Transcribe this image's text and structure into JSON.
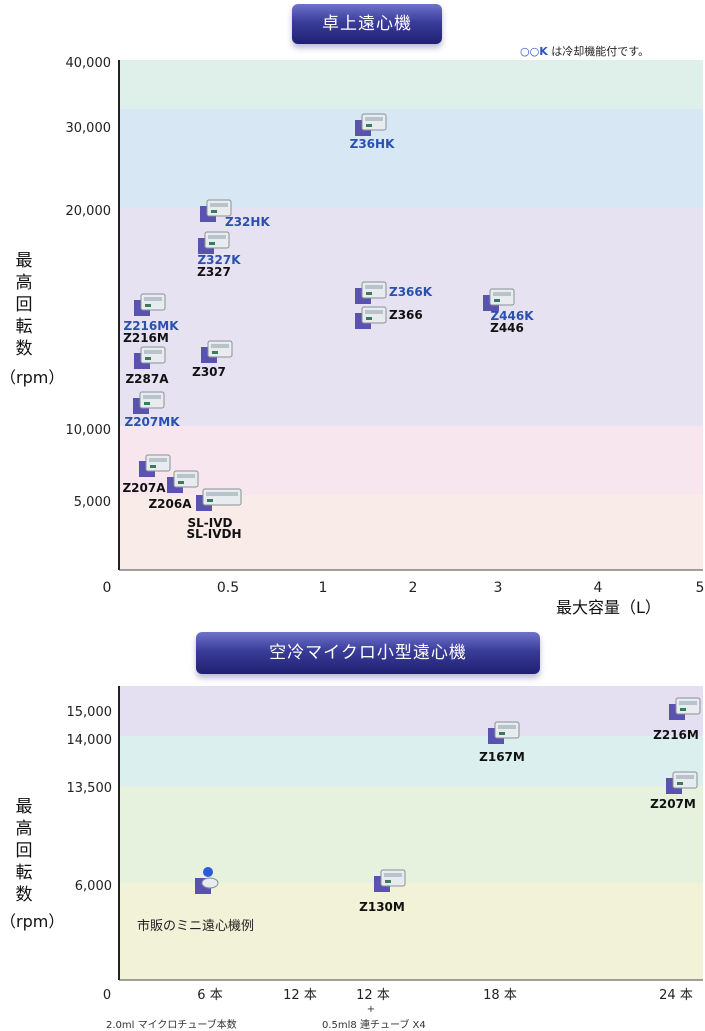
{
  "top": {
    "title": "卓上遠心機",
    "note_symbols": "○○K",
    "note_text": "は冷却機能付です。",
    "ylabel_chars": [
      "最",
      "高",
      "回",
      "転",
      "数"
    ],
    "ylabel_unit": "（rpm）",
    "xlabel": "最大容量（L）",
    "yticks": [
      "40,000",
      "30,000",
      "20,000",
      "10,000",
      "5,000"
    ],
    "xticks": [
      "0",
      "0.5",
      "1",
      "2",
      "3",
      "4",
      "5"
    ],
    "bands": [
      {
        "color": "#dff0ea"
      },
      {
        "color": "#d7e8f4"
      },
      {
        "color": "#e6e2f2"
      },
      {
        "color": "#f7e6ee"
      },
      {
        "color": "#f9ece8"
      }
    ],
    "products": [
      {
        "label": "Z36HK",
        "color": "#2a4fae"
      },
      {
        "label": "Z32HK",
        "color": "#2a4fae"
      },
      {
        "label": "Z327K",
        "color": "#2a4fae"
      },
      {
        "label": "Z327",
        "color": "#111111"
      },
      {
        "label": "Z366K",
        "color": "#2a4fae"
      },
      {
        "label": "Z366",
        "color": "#111111"
      },
      {
        "label": "Z446K",
        "color": "#2a4fae"
      },
      {
        "label": "Z446",
        "color": "#111111"
      },
      {
        "label": "Z216MK",
        "color": "#2a4fae"
      },
      {
        "label": "Z216M",
        "color": "#111111"
      },
      {
        "label": "Z287A",
        "color": "#111111"
      },
      {
        "label": "Z307",
        "color": "#111111"
      },
      {
        "label": "Z207MK",
        "color": "#2a4fae"
      },
      {
        "label": "Z207A",
        "color": "#111111"
      },
      {
        "label": "Z206A",
        "color": "#111111"
      },
      {
        "label": "SL-IVD",
        "color": "#111111"
      },
      {
        "label": "SL-IVDH",
        "color": "#111111"
      }
    ]
  },
  "bottom": {
    "title": "空冷マイクロ小型遠心機",
    "ylabel_chars": [
      "最",
      "高",
      "回",
      "転",
      "数"
    ],
    "ylabel_unit": "（rpm）",
    "yticks": [
      "15,000",
      "14,000",
      "13,500",
      "6,000"
    ],
    "xticks": [
      "0",
      "6 本",
      "12 本",
      "12 本",
      "18 本",
      "24 本"
    ],
    "x_plus": "+",
    "tube_note_left": "2.0ml マイクロチューブ本数",
    "tube_note_right": "0.5ml8 連チューブ X4",
    "bands": [
      {
        "color": "#e4e0f2"
      },
      {
        "color": "#dcefef"
      },
      {
        "color": "#e6f1de"
      },
      {
        "color": "#f2f2d8"
      }
    ],
    "products": [
      {
        "label": "Z216M",
        "color": "#111111"
      },
      {
        "label": "Z167M",
        "color": "#111111"
      },
      {
        "label": "Z207M",
        "color": "#111111"
      },
      {
        "label": "Z130M",
        "color": "#111111"
      }
    ],
    "example_label": "市販のミニ遠心機例"
  },
  "chart_data": [
    {
      "type": "scatter",
      "title": "卓上遠心機",
      "xlabel": "最大容量（L）",
      "ylabel": "最高回転数（rpm）",
      "series": [
        {
          "name": "Z36HK",
          "x": [
            1.5
          ],
          "y": [
            30000
          ]
        },
        {
          "name": "Z32HK",
          "x": [
            0.45
          ],
          "y": [
            20000
          ]
        },
        {
          "name": "Z327K",
          "x": [
            0.45
          ],
          "y": [
            18000
          ]
        },
        {
          "name": "Z327",
          "x": [
            0.45
          ],
          "y": [
            18000
          ]
        },
        {
          "name": "Z366K",
          "x": [
            1.5
          ],
          "y": [
            15000
          ]
        },
        {
          "name": "Z366",
          "x": [
            1.5
          ],
          "y": [
            15000
          ]
        },
        {
          "name": "Z446K",
          "x": [
            3.0
          ],
          "y": [
            15000
          ]
        },
        {
          "name": "Z446",
          "x": [
            3.0
          ],
          "y": [
            15000
          ]
        },
        {
          "name": "Z216MK",
          "x": [
            0.15
          ],
          "y": [
            15000
          ]
        },
        {
          "name": "Z216M",
          "x": [
            0.15
          ],
          "y": [
            15000
          ]
        },
        {
          "name": "Z287A",
          "x": [
            0.15
          ],
          "y": [
            13000
          ]
        },
        {
          "name": "Z307",
          "x": [
            0.45
          ],
          "y": [
            13000
          ]
        },
        {
          "name": "Z207MK",
          "x": [
            0.15
          ],
          "y": [
            11000
          ]
        },
        {
          "name": "Z207A",
          "x": [
            0.15
          ],
          "y": [
            7000
          ]
        },
        {
          "name": "Z206A",
          "x": [
            0.3
          ],
          "y": [
            6000
          ]
        },
        {
          "name": "SL-IVD",
          "x": [
            0.45
          ],
          "y": [
            5000
          ]
        },
        {
          "name": "SL-IVDH",
          "x": [
            0.45
          ],
          "y": [
            5000
          ]
        }
      ]
    },
    {
      "type": "scatter",
      "title": "空冷マイクロ小型遠心機",
      "ylabel": "最高回転数（rpm）",
      "series": [
        {
          "name": "Z216M",
          "x": [
            24
          ],
          "y": [
            15000
          ]
        },
        {
          "name": "Z167M",
          "x": [
            18
          ],
          "y": [
            14000
          ]
        },
        {
          "name": "Z207M",
          "x": [
            24
          ],
          "y": [
            13500
          ]
        },
        {
          "name": "Z130M",
          "x": [
            12
          ],
          "y": [
            6000
          ]
        },
        {
          "name": "市販のミニ遠心機例",
          "x": [
            6
          ],
          "y": [
            6000
          ]
        }
      ]
    }
  ]
}
